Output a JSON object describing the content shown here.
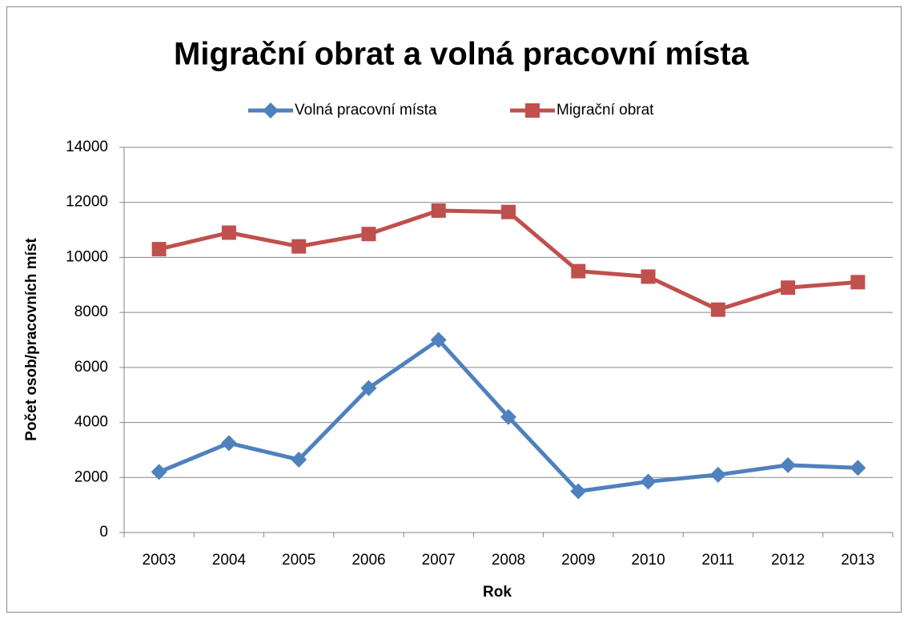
{
  "chart_data": {
    "type": "line",
    "title": "Migrační obrat a volná pracovní místa",
    "xlabel": "Rok",
    "ylabel": "Počet osob/pracovních míst",
    "categories": [
      "2003",
      "2004",
      "2005",
      "2006",
      "2007",
      "2008",
      "2009",
      "2010",
      "2011",
      "2012",
      "2013"
    ],
    "series": [
      {
        "name": "Volná pracovní místa",
        "color": "#4f81bd",
        "marker": "diamond",
        "values": [
          2200,
          3250,
          2650,
          5250,
          7000,
          4200,
          1500,
          1850,
          2100,
          2450,
          2350
        ]
      },
      {
        "name": "Migrační obrat",
        "color": "#c0504d",
        "marker": "square",
        "values": [
          10300,
          10900,
          10400,
          10850,
          11700,
          11650,
          9500,
          9300,
          8100,
          8900,
          9100
        ]
      }
    ],
    "ylim": [
      0,
      14000
    ],
    "yticks": [
      0,
      2000,
      4000,
      6000,
      8000,
      10000,
      12000,
      14000
    ],
    "grid": true,
    "legend": "top"
  }
}
